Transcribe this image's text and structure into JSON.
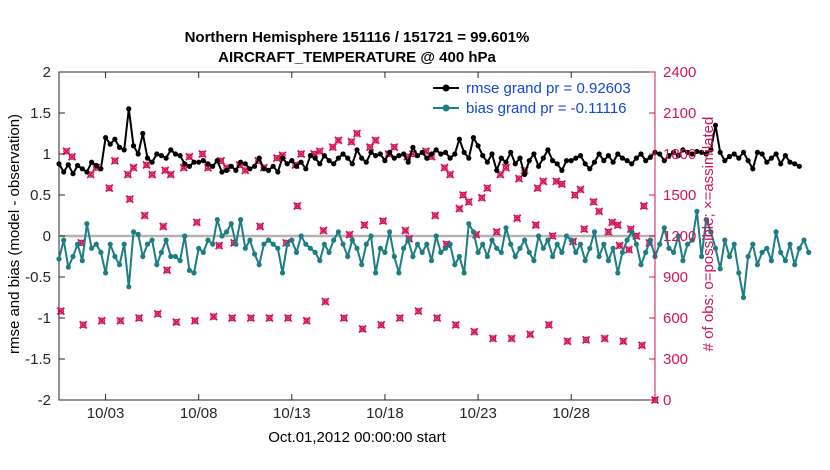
{
  "chart_data": {
    "type": "line",
    "title": "Northern Hemisphere 151116 / 151721 = 99.601%",
    "subtitle": "AIRCRAFT_TEMPERATURE @ 400 hPa",
    "xlabel": "Oct.01,2012 00:00:00 start",
    "ylabel": "rmse and bias (model - observation)",
    "y2label": "# of obs: o=possible; ×=assimilated",
    "xlim": [
      1.0,
      33.0
    ],
    "ylim": [
      -2,
      2
    ],
    "y2lim": [
      0,
      2400
    ],
    "xticks": [
      3.5,
      8.5,
      13.5,
      18.5,
      23.5,
      28.5
    ],
    "xticklabels": [
      "10/03",
      "10/08",
      "10/13",
      "10/18",
      "10/23",
      "10/28"
    ],
    "yticks": [
      -2,
      -1.5,
      -1,
      -0.5,
      0,
      0.5,
      1,
      1.5,
      2
    ],
    "yticklabels": [
      "-2",
      "-1.5",
      "-1",
      "-0.5",
      "0",
      "0.5",
      "1",
      "1.5",
      "2"
    ],
    "y2ticks": [
      0,
      300,
      600,
      900,
      1200,
      1500,
      1800,
      2100,
      2400
    ],
    "y2ticklabels": [
      "0",
      "300",
      "600",
      "900",
      "1200",
      "1500",
      "1800",
      "2100",
      "2400"
    ],
    "grid": false,
    "zero_line": 0,
    "legend_position": "top-right",
    "x_start": 1.0,
    "x_step": 0.25,
    "series": [
      {
        "name": "rmse grand pr = 0.92603",
        "color": "#000000",
        "marker": "circle",
        "axis": "left",
        "values": [
          0.88,
          0.78,
          0.87,
          0.76,
          0.86,
          0.82,
          0.78,
          0.9,
          0.86,
          0.82,
          1.2,
          1.12,
          1.18,
          1.08,
          1.05,
          1.55,
          1.1,
          1.0,
          1.25,
          0.95,
          0.9,
          1.0,
          0.98,
          0.95,
          1.05,
          1.0,
          0.98,
          0.88,
          0.85,
          0.9,
          0.9,
          0.92,
          0.88,
          0.85,
          0.92,
          0.78,
          0.8,
          0.85,
          0.8,
          0.9,
          0.88,
          0.82,
          0.85,
          0.95,
          0.82,
          0.8,
          0.85,
          0.78,
          0.95,
          0.88,
          0.92,
          0.85,
          0.9,
          0.82,
          0.98,
          0.95,
          0.88,
          0.98,
          0.92,
          0.88,
          0.95,
          1.0,
          0.95,
          0.88,
          1.05,
          0.95,
          0.9,
          1.02,
          0.98,
          1.0,
          0.92,
          1.02,
          0.95,
          0.98,
          1.0,
          0.9,
          1.08,
          0.98,
          1.02,
          0.95,
          1.0,
          1.05,
          1.0,
          1.02,
          0.95,
          1.0,
          1.18,
          1.02,
          0.95,
          1.2,
          1.1,
          0.98,
          0.9,
          1.0,
          0.8,
          0.95,
          0.9,
          1.02,
          0.88,
          0.95,
          0.75,
          0.92,
          1.0,
          0.85,
          0.95,
          1.05,
          0.92,
          0.88,
          0.8,
          0.92,
          0.92,
          0.95,
          0.98,
          0.88,
          0.82,
          0.9,
          1.0,
          0.92,
          0.98,
          0.9,
          1.0,
          0.95,
          0.92,
          0.88,
          0.95,
          1.0,
          0.92,
          0.96,
          1.02,
          1.0,
          0.92,
          0.98,
          1.02,
          0.98,
          1.05,
          1.02,
          1.0,
          1.03,
          1.02,
          1.0,
          1.05,
          1.35,
          1.02,
          0.92,
          0.97,
          1.0,
          0.95,
          1.02,
          0.92,
          0.82,
          1.02,
          1.0,
          0.9,
          0.95,
          1.0,
          0.88,
          0.98,
          0.9,
          0.88,
          0.85
        ]
      },
      {
        "name": "bias grand pr = -0.11116",
        "color": "#1c7d82",
        "marker": "circle",
        "axis": "left",
        "values": [
          -0.28,
          -0.05,
          -0.38,
          -0.25,
          -0.1,
          -0.3,
          0.15,
          -0.15,
          -0.1,
          -0.2,
          -0.45,
          -0.1,
          -0.25,
          -0.35,
          -0.1,
          -0.62,
          0.05,
          0.02,
          -0.25,
          -0.1,
          -0.05,
          -0.35,
          -0.2,
          -0.05,
          -0.25,
          -0.25,
          -0.3,
          0.0,
          -0.42,
          -0.45,
          -0.15,
          -0.2,
          -0.05,
          -0.1,
          0.2,
          0.0,
          0.05,
          0.15,
          -0.1,
          0.2,
          -0.15,
          -0.05,
          -0.22,
          -0.35,
          -0.1,
          -0.05,
          -0.1,
          -0.15,
          -0.45,
          -0.1,
          -0.05,
          -0.2,
          0.0,
          -0.1,
          -0.15,
          -0.2,
          -0.3,
          -0.1,
          -0.2,
          -0.05,
          0.05,
          -0.1,
          -0.25,
          -0.05,
          -0.15,
          -0.35,
          -0.1,
          0.0,
          -0.45,
          -0.15,
          -0.2,
          0.05,
          -0.25,
          -0.45,
          -0.15,
          -0.05,
          -0.25,
          -0.1,
          -0.2,
          -0.1,
          -0.3,
          0.0,
          -0.2,
          -0.15,
          -0.1,
          -0.35,
          -0.25,
          -0.45,
          0.15,
          0.05,
          -0.2,
          -0.1,
          -0.25,
          -0.05,
          -0.15,
          -0.2,
          0.1,
          -0.1,
          -0.25,
          -0.15,
          -0.05,
          -0.2,
          -0.3,
          0.0,
          -0.15,
          -0.05,
          -0.25,
          -0.1,
          -0.2,
          0.0,
          -0.05,
          -0.2,
          -0.1,
          -0.3,
          -0.15,
          0.05,
          -0.25,
          -0.1,
          -0.3,
          -0.15,
          -0.45,
          -0.2,
          -0.05,
          0.05,
          -0.1,
          -0.35,
          -0.2,
          -0.05,
          -0.25,
          -0.1,
          0.1,
          -0.15,
          -0.2,
          0.0,
          -0.3,
          -0.1,
          -0.05,
          0.3,
          -0.25,
          0.2,
          0.05,
          -0.15,
          -0.4,
          -0.05,
          -0.25,
          -0.1,
          -0.45,
          -0.75,
          -0.25,
          -0.1,
          -0.35,
          -0.2,
          -0.15,
          -0.3,
          0.05,
          -0.2,
          -0.3,
          -0.1,
          -0.35,
          -0.15,
          -0.05,
          -0.2
        ]
      }
    ],
    "obs_markers": {
      "name": "# of obs (possible / assimilated)",
      "color": "#d4145a",
      "axis": "right",
      "points": [
        [
          1.1,
          650
        ],
        [
          1.4,
          1820
        ],
        [
          1.7,
          1780
        ],
        [
          2.3,
          550
        ],
        [
          2.7,
          1650
        ],
        [
          3.0,
          1700
        ],
        [
          3.3,
          580
        ],
        [
          3.7,
          1550
        ],
        [
          4.0,
          1750
        ],
        [
          4.3,
          580
        ],
        [
          4.7,
          1650
        ],
        [
          5.0,
          1700
        ],
        [
          5.3,
          600
        ],
        [
          5.7,
          1720
        ],
        [
          6.0,
          1650
        ],
        [
          6.3,
          630
        ],
        [
          6.7,
          1680
        ],
        [
          7.0,
          1650
        ],
        [
          7.3,
          570
        ],
        [
          7.7,
          1700
        ],
        [
          8.0,
          1780
        ],
        [
          8.3,
          580
        ],
        [
          8.7,
          1800
        ],
        [
          9.0,
          1700
        ],
        [
          9.3,
          610
        ],
        [
          9.7,
          1750
        ],
        [
          10.0,
          1700
        ],
        [
          10.3,
          600
        ],
        [
          10.7,
          1720
        ],
        [
          11.0,
          1680
        ],
        [
          11.3,
          600
        ],
        [
          11.7,
          1750
        ],
        [
          12.0,
          1700
        ],
        [
          12.3,
          600
        ],
        [
          12.7,
          1770
        ],
        [
          13.0,
          1790
        ],
        [
          13.3,
          600
        ],
        [
          13.7,
          1720
        ],
        [
          14.0,
          1800
        ],
        [
          14.3,
          580
        ],
        [
          14.7,
          1800
        ],
        [
          15.0,
          1820
        ],
        [
          15.3,
          720
        ],
        [
          15.7,
          1850
        ],
        [
          16.0,
          1900
        ],
        [
          16.3,
          600
        ],
        [
          16.7,
          1890
        ],
        [
          17.0,
          1950
        ],
        [
          17.3,
          520
        ],
        [
          17.7,
          1850
        ],
        [
          18.0,
          1900
        ],
        [
          18.3,
          550
        ],
        [
          18.7,
          1800
        ],
        [
          19.0,
          1850
        ],
        [
          19.3,
          600
        ],
        [
          19.7,
          1780
        ],
        [
          20.0,
          1800
        ],
        [
          20.3,
          650
        ],
        [
          20.7,
          1820
        ],
        [
          21.0,
          1780
        ],
        [
          21.3,
          600
        ],
        [
          21.7,
          1700
        ],
        [
          22.0,
          1650
        ],
        [
          22.3,
          550
        ],
        [
          22.7,
          1500
        ],
        [
          23.0,
          1450
        ],
        [
          23.3,
          500
        ],
        [
          23.7,
          1480
        ],
        [
          24.0,
          1550
        ],
        [
          24.3,
          450
        ],
        [
          24.7,
          1650
        ],
        [
          25.0,
          1700
        ],
        [
          25.3,
          450
        ],
        [
          25.7,
          1620
        ],
        [
          26.0,
          1680
        ],
        [
          26.3,
          480
        ],
        [
          26.7,
          1550
        ],
        [
          27.0,
          1600
        ],
        [
          27.3,
          550
        ],
        [
          27.7,
          1600
        ],
        [
          28.0,
          1580
        ],
        [
          28.3,
          430
        ],
        [
          28.7,
          1500
        ],
        [
          29.0,
          1540
        ],
        [
          29.3,
          440
        ],
        [
          29.7,
          1450
        ],
        [
          30.0,
          1380
        ],
        [
          30.3,
          450
        ],
        [
          30.7,
          1300
        ],
        [
          31.0,
          1280
        ],
        [
          31.3,
          430
        ],
        [
          31.7,
          1250
        ],
        [
          32.0,
          1200
        ],
        [
          32.3,
          400
        ],
        [
          32.7,
          1150
        ],
        [
          33.0,
          0
        ],
        [
          4.8,
          1470
        ],
        [
          5.6,
          1350
        ],
        [
          6.6,
          1270
        ],
        [
          8.4,
          1300
        ],
        [
          10.4,
          1150
        ],
        [
          11.8,
          1270
        ],
        [
          13.8,
          1420
        ],
        [
          15.2,
          1240
        ],
        [
          16.6,
          1210
        ],
        [
          18.4,
          1310
        ],
        [
          19.6,
          1240
        ],
        [
          21.2,
          1350
        ],
        [
          22.5,
          1400
        ],
        [
          24.5,
          1230
        ],
        [
          25.6,
          1330
        ],
        [
          27.5,
          1200
        ],
        [
          29.2,
          1250
        ],
        [
          31.1,
          1130
        ],
        [
          32.4,
          1420
        ],
        [
          2.2,
          1150
        ],
        [
          6.8,
          950
        ],
        [
          9.6,
          1130
        ],
        [
          13.2,
          1150
        ],
        [
          17.4,
          1280
        ],
        [
          19.8,
          1180
        ],
        [
          21.8,
          1140
        ],
        [
          23.4,
          1210
        ],
        [
          26.6,
          1280
        ],
        [
          28.6,
          1160
        ],
        [
          30.5,
          1230
        ],
        [
          31.6,
          1100
        ]
      ]
    }
  }
}
